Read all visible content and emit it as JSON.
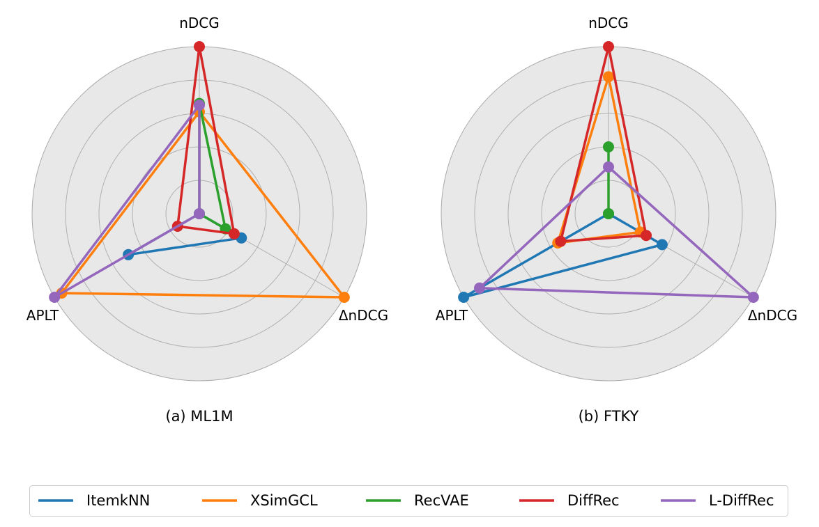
{
  "chart_data": [
    {
      "type": "radar",
      "title": "(a) ML1M",
      "axes": [
        "nDCG",
        "ΔnDCG",
        "APLT"
      ],
      "rlim": [
        0,
        1
      ],
      "grid": true,
      "series": [
        {
          "name": "ItemkNN",
          "color": "#1f77b4",
          "values": [
            0.0,
            0.29,
            0.49
          ]
        },
        {
          "name": "XSimGCL",
          "color": "#ff7f0e",
          "values": [
            0.61,
            1.0,
            0.95
          ]
        },
        {
          "name": "RecVAE",
          "color": "#2ca02c",
          "values": [
            0.66,
            0.18,
            0.0
          ]
        },
        {
          "name": "DiffRec",
          "color": "#d62728",
          "values": [
            1.0,
            0.24,
            0.15
          ]
        },
        {
          "name": "L-DiffRec",
          "color": "#9467bd",
          "values": [
            0.65,
            0.0,
            1.0
          ]
        }
      ]
    },
    {
      "type": "radar",
      "title": "(b) FTKY",
      "axes": [
        "nDCG",
        "ΔnDCG",
        "APLT"
      ],
      "rlim": [
        0,
        1
      ],
      "grid": true,
      "series": [
        {
          "name": "ItemkNN",
          "color": "#1f77b4",
          "values": [
            0.0,
            0.37,
            1.0
          ]
        },
        {
          "name": "XSimGCL",
          "color": "#ff7f0e",
          "values": [
            0.82,
            0.22,
            0.35
          ]
        },
        {
          "name": "RecVAE",
          "color": "#2ca02c",
          "values": [
            0.4,
            0.0,
            0.0
          ]
        },
        {
          "name": "DiffRec",
          "color": "#d62728",
          "values": [
            1.0,
            0.26,
            0.33
          ]
        },
        {
          "name": "L-DiffRec",
          "color": "#9467bd",
          "values": [
            0.28,
            1.0,
            0.89
          ]
        }
      ]
    }
  ],
  "legend": {
    "placement": "bottom",
    "entries": [
      "ItemkNN",
      "XSimGCL",
      "RecVAE",
      "DiffRec",
      "L-DiffRec"
    ]
  }
}
